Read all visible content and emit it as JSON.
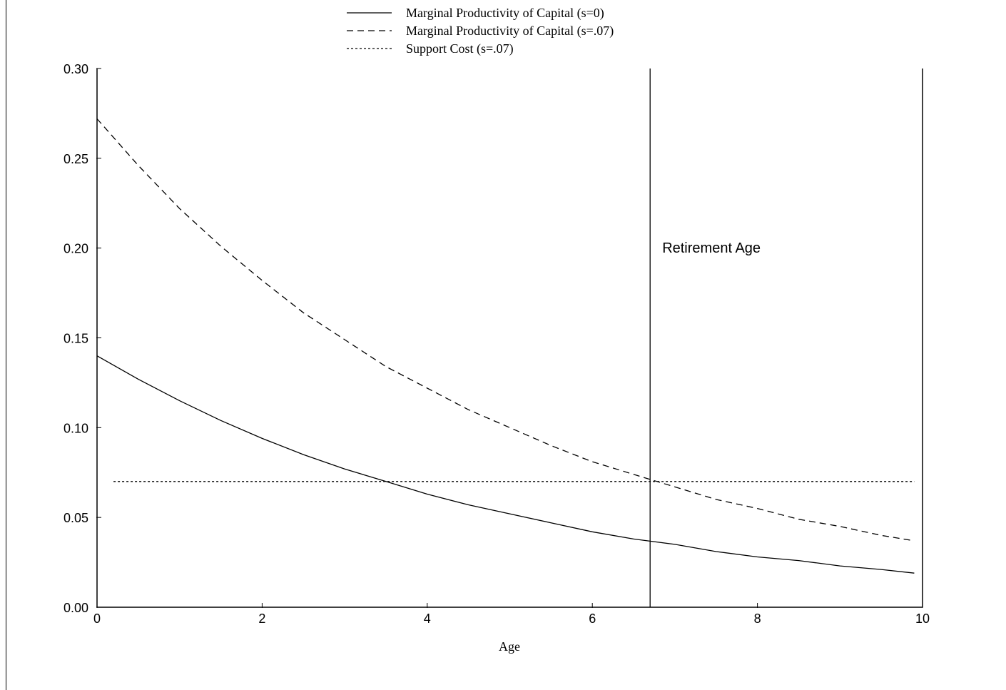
{
  "chart_data": {
    "type": "line",
    "xlabel": "Age",
    "ylabel": "",
    "xlim": [
      0,
      10
    ],
    "ylim": [
      0,
      0.3
    ],
    "xticks": [
      0,
      2,
      4,
      6,
      8,
      10
    ],
    "xtick_labels": [
      "0",
      "2",
      "4",
      "6",
      "8",
      "10"
    ],
    "yticks": [
      0,
      0.05,
      0.1,
      0.15,
      0.2,
      0.25,
      0.3
    ],
    "ytick_labels": [
      "0.00",
      "0.05",
      "0.10",
      "0.15",
      "0.20",
      "0.25",
      "0.30"
    ],
    "grid": false,
    "legend_position": "top-center",
    "series": [
      {
        "name": "Marginal Productivity of Capital (s=0)",
        "style": "solid",
        "x": [
          0,
          0.5,
          1,
          1.5,
          2,
          2.5,
          3,
          3.5,
          4,
          4.5,
          5,
          5.5,
          6,
          6.5,
          7,
          7.5,
          8,
          8.5,
          9,
          9.5,
          9.9
        ],
        "y": [
          0.14,
          0.127,
          0.115,
          0.104,
          0.094,
          0.085,
          0.077,
          0.07,
          0.063,
          0.057,
          0.052,
          0.047,
          0.042,
          0.038,
          0.035,
          0.031,
          0.028,
          0.026,
          0.023,
          0.021,
          0.019
        ]
      },
      {
        "name": "Marginal Productivity of Capital (s=.07)",
        "style": "dashed",
        "x": [
          0,
          0.5,
          1,
          1.5,
          2,
          2.5,
          3,
          3.5,
          4,
          4.5,
          5,
          5.5,
          6,
          6.5,
          7,
          7.5,
          8,
          8.5,
          9,
          9.5,
          9.9
        ],
        "y": [
          0.272,
          0.246,
          0.222,
          0.201,
          0.182,
          0.164,
          0.149,
          0.134,
          0.122,
          0.11,
          0.1,
          0.09,
          0.081,
          0.074,
          0.067,
          0.06,
          0.055,
          0.049,
          0.045,
          0.04,
          0.037
        ]
      },
      {
        "name": "Support Cost (s=.07)",
        "style": "dotted",
        "x": [
          0.2,
          9.9
        ],
        "y": [
          0.07,
          0.07
        ]
      }
    ],
    "annotations": [
      {
        "text": "Retirement Age",
        "x": 6.7
      }
    ]
  }
}
